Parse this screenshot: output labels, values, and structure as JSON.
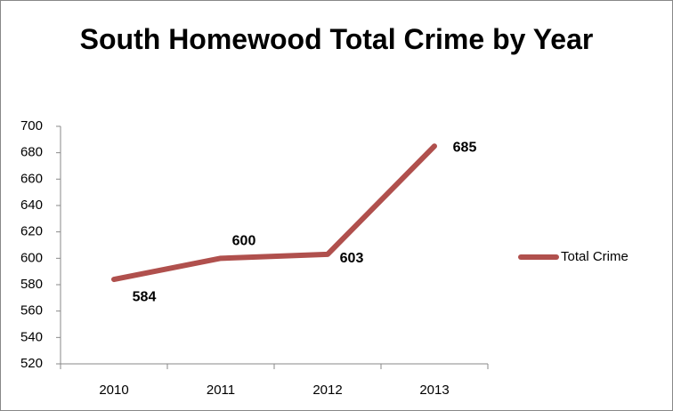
{
  "chart_data": {
    "type": "line",
    "title": "South Homewood Total Crime by Year",
    "categories": [
      "2010",
      "2011",
      "2012",
      "2013"
    ],
    "series": [
      {
        "name": "Total Crime",
        "color": "#b0504d",
        "values": [
          584,
          600,
          603,
          685
        ]
      }
    ],
    "ylim": [
      520,
      700
    ],
    "yticks": [
      520,
      540,
      560,
      580,
      600,
      620,
      640,
      660,
      680,
      700
    ],
    "grid": false,
    "legend": "right"
  }
}
